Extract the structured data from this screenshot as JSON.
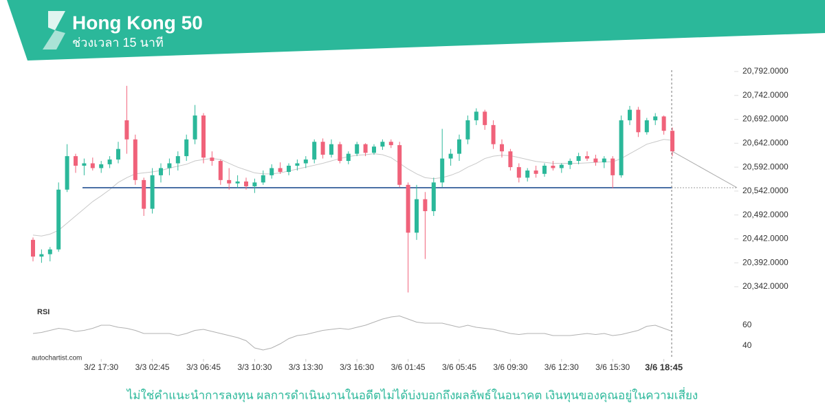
{
  "header": {
    "title": "Hong Kong 50",
    "subtitle": "ช่วงเวลา 15 นาที"
  },
  "chart_data": {
    "type": "candlestick",
    "up_color": "#2bb89a",
    "down_color": "#f0627a",
    "ylim": [
      20300,
      20800
    ],
    "yticks": [
      {
        "value": 20792,
        "label": "20,792.0000"
      },
      {
        "value": 20742,
        "label": "20,742.0000"
      },
      {
        "value": 20692,
        "label": "20,692.0000"
      },
      {
        "value": 20642,
        "label": "20,642.0000"
      },
      {
        "value": 20592,
        "label": "20,592.0000"
      },
      {
        "value": 20542,
        "label": "20,542.0000"
      },
      {
        "value": 20492,
        "label": "20,492.0000"
      },
      {
        "value": 20442,
        "label": "20,442.0000"
      },
      {
        "value": 20392,
        "label": "20,392.0000"
      },
      {
        "value": 20342,
        "label": "20,342.0000"
      }
    ],
    "xticks": [
      {
        "value": 8,
        "label": "3/2 17:30"
      },
      {
        "value": 14,
        "label": "3/3 02:45"
      },
      {
        "value": 20,
        "label": "3/3 06:45"
      },
      {
        "value": 26,
        "label": "3/3 10:30"
      },
      {
        "value": 32,
        "label": "3/3 13:30"
      },
      {
        "value": 38,
        "label": "3/3 16:30"
      },
      {
        "value": 44,
        "label": "3/6 01:45"
      },
      {
        "value": 50,
        "label": "3/6 05:45"
      },
      {
        "value": 56,
        "label": "3/6 09:30"
      },
      {
        "value": 62,
        "label": "3/6 12:30"
      },
      {
        "value": 68,
        "label": "3/6 15:30"
      },
      {
        "value": 74,
        "label": "3/6 18:45"
      }
    ],
    "candles": [
      [
        20440,
        20445,
        20395,
        20405
      ],
      [
        20405,
        20420,
        20392,
        20410
      ],
      [
        20410,
        20425,
        20395,
        20420
      ],
      [
        20420,
        20560,
        20415,
        20545
      ],
      [
        20545,
        20640,
        20540,
        20615
      ],
      [
        20615,
        20620,
        20580,
        20595
      ],
      [
        20595,
        20610,
        20575,
        20600
      ],
      [
        20600,
        20612,
        20585,
        20590
      ],
      [
        20590,
        20605,
        20580,
        20598
      ],
      [
        20598,
        20615,
        20590,
        20608
      ],
      [
        20608,
        20645,
        20600,
        20630
      ],
      [
        20690,
        20762,
        20620,
        20650
      ],
      [
        20650,
        20660,
        20555,
        20565
      ],
      [
        20565,
        20570,
        20490,
        20505
      ],
      [
        20505,
        20590,
        20495,
        20575
      ],
      [
        20575,
        20600,
        20560,
        20590
      ],
      [
        20590,
        20610,
        20575,
        20600
      ],
      [
        20600,
        20625,
        20585,
        20615
      ],
      [
        20615,
        20660,
        20605,
        20650
      ],
      [
        20650,
        20722,
        20640,
        20700
      ],
      [
        20700,
        20705,
        20600,
        20612
      ],
      [
        20612,
        20625,
        20595,
        20605
      ],
      [
        20605,
        20608,
        20555,
        20565
      ],
      [
        20565,
        20590,
        20545,
        20558
      ],
      [
        20558,
        20575,
        20548,
        20562
      ],
      [
        20562,
        20570,
        20545,
        20552
      ],
      [
        20552,
        20568,
        20538,
        20560
      ],
      [
        20560,
        20585,
        20555,
        20575
      ],
      [
        20575,
        20598,
        20568,
        20590
      ],
      [
        20590,
        20602,
        20578,
        20582
      ],
      [
        20582,
        20600,
        20575,
        20595
      ],
      [
        20595,
        20608,
        20585,
        20600
      ],
      [
        20600,
        20615,
        20590,
        20608
      ],
      [
        20608,
        20650,
        20600,
        20645
      ],
      [
        20645,
        20652,
        20610,
        20618
      ],
      [
        20618,
        20650,
        20612,
        20640
      ],
      [
        20640,
        20645,
        20600,
        20605
      ],
      [
        20605,
        20625,
        20598,
        20620
      ],
      [
        20620,
        20645,
        20615,
        20640
      ],
      [
        20640,
        20642,
        20615,
        20622
      ],
      [
        20622,
        20640,
        20618,
        20635
      ],
      [
        20635,
        20650,
        20628,
        20645
      ],
      [
        20645,
        20650,
        20632,
        20638
      ],
      [
        20638,
        20645,
        20550,
        20555
      ],
      [
        20555,
        20560,
        20330,
        20455
      ],
      [
        20455,
        20555,
        20440,
        20525
      ],
      [
        20525,
        20540,
        20400,
        20500
      ],
      [
        20500,
        20570,
        20490,
        20560
      ],
      [
        20560,
        20672,
        20550,
        20610
      ],
      [
        20610,
        20630,
        20595,
        20620
      ],
      [
        20620,
        20660,
        20605,
        20650
      ],
      [
        20650,
        20700,
        20640,
        20690
      ],
      [
        20690,
        20715,
        20680,
        20708
      ],
      [
        20708,
        20712,
        20670,
        20680
      ],
      [
        20680,
        20690,
        20630,
        20640
      ],
      [
        20640,
        20650,
        20612,
        20625
      ],
      [
        20625,
        20630,
        20585,
        20592
      ],
      [
        20592,
        20600,
        20560,
        20570
      ],
      [
        20570,
        20590,
        20562,
        20585
      ],
      [
        20585,
        20595,
        20570,
        20578
      ],
      [
        20578,
        20600,
        20572,
        20595
      ],
      [
        20595,
        20605,
        20585,
        20590
      ],
      [
        20590,
        20600,
        20580,
        20597
      ],
      [
        20597,
        20610,
        20588,
        20605
      ],
      [
        20605,
        20622,
        20598,
        20615
      ],
      [
        20615,
        20625,
        20605,
        20610
      ],
      [
        20610,
        20618,
        20595,
        20602
      ],
      [
        20602,
        20615,
        20590,
        20610
      ],
      [
        20610,
        20615,
        20548,
        20575
      ],
      [
        20575,
        20700,
        20570,
        20690
      ],
      [
        20690,
        20720,
        20680,
        20712
      ],
      [
        20712,
        20718,
        20655,
        20665
      ],
      [
        20665,
        20695,
        20660,
        20690
      ],
      [
        20690,
        20705,
        20680,
        20698
      ],
      [
        20698,
        20700,
        20660,
        20668
      ],
      [
        20668,
        20675,
        20615,
        20625
      ]
    ],
    "ma": {
      "color": "#c8c8c8",
      "values": [
        20450,
        20448,
        20452,
        20460,
        20475,
        20490,
        20505,
        20520,
        20532,
        20545,
        20560,
        20570,
        20578,
        20580,
        20582,
        20585,
        20590,
        20594,
        20598,
        20605,
        20608,
        20610,
        20608,
        20600,
        20592,
        20586,
        20580,
        20578,
        20578,
        20580,
        20584,
        20588,
        20592,
        20596,
        20600,
        20605,
        20610,
        20614,
        20617,
        20618,
        20620,
        20618,
        20612,
        20600,
        20588,
        20578,
        20570,
        20568,
        20570,
        20575,
        20582,
        20592,
        20600,
        20610,
        20615,
        20617,
        20616,
        20612,
        20608,
        20604,
        20602,
        20600,
        20600,
        20600,
        20600,
        20601,
        20602,
        20603,
        20603,
        20610,
        20620,
        20630,
        20640,
        20645,
        20650,
        20648
      ]
    },
    "level": {
      "value": 20549,
      "color": "#4a6fa5"
    },
    "rsi": {
      "label": "RSI",
      "color": "#b0b0b0",
      "ylim": [
        30,
        75
      ],
      "yticks": [
        60,
        40
      ],
      "values": [
        52,
        53,
        55,
        57,
        56,
        54,
        55,
        57,
        60,
        60,
        58,
        57,
        55,
        52,
        52,
        52,
        52,
        50,
        52,
        55,
        56,
        54,
        52,
        50,
        48,
        45,
        38,
        36,
        38,
        42,
        47,
        50,
        51,
        53,
        55,
        56,
        57,
        56,
        58,
        60,
        63,
        66,
        68,
        69,
        66,
        63,
        62,
        62,
        62,
        60,
        58,
        60,
        58,
        57,
        56,
        54,
        52,
        51,
        52,
        52,
        52,
        50,
        50,
        50,
        51,
        52,
        51,
        52,
        50,
        51,
        53,
        55,
        59,
        60,
        57,
        54
      ]
    },
    "source": "autochartist.com"
  },
  "footer": {
    "disclaimer": "ไม่ใช่คำแนะนำการลงทุน ผลการดำเนินงานในอดีตไม่ได้บ่งบอกถึงผลลัพธ์ในอนาคต เงินทุนของคุณอยู่ในความเสี่ยง"
  }
}
